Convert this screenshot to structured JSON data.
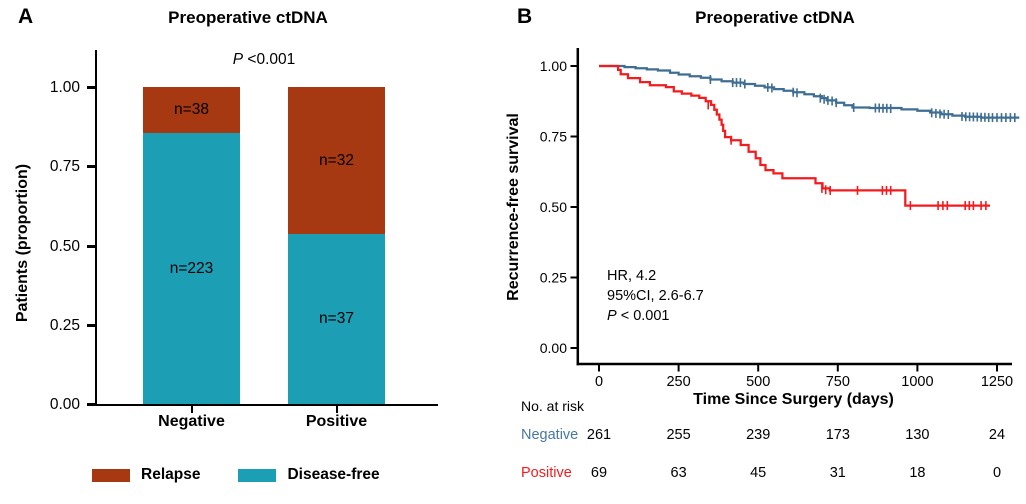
{
  "panel_a": {
    "label": "A",
    "title": "Preoperative ctDNA",
    "p_prefix": "P",
    "p_rest": " <0.001",
    "ylabel": "Patients (proportion)",
    "yticks": [
      "1.00",
      "0.75",
      "0.50",
      "0.25",
      "0.00"
    ],
    "xticklabels": [
      "Negative",
      "Positive"
    ],
    "segments": [
      {
        "relapse_label": "n=38",
        "disease_free_label": "n=223"
      },
      {
        "relapse_label": "n=32",
        "disease_free_label": "n=37"
      }
    ],
    "legend": [
      {
        "label": "Relapse",
        "color": "#A63911"
      },
      {
        "label": "Disease-free",
        "color": "#1C9EB5"
      }
    ]
  },
  "panel_b": {
    "label": "B",
    "title": "Preoperative ctDNA",
    "ylabel": "Recurrence-free survival",
    "xlabel": "Time Since Surgery (days)",
    "yticks": [
      "1.00",
      "0.75",
      "0.50",
      "0.25",
      "0.00"
    ],
    "xticks": [
      "0",
      "250",
      "500",
      "750",
      "1000",
      "1250"
    ],
    "annotation_line1": "HR, 4.2",
    "annotation_line2": "95%CI, 2.6-6.7",
    "p_prefix": "P",
    "p_rest": " < 0.001",
    "risk_header": "No. at risk",
    "risk_rows": [
      {
        "name": "Negative",
        "color": "#4678A5",
        "values": [
          "261",
          "255",
          "239",
          "173",
          "130",
          "24"
        ]
      },
      {
        "name": "Positive",
        "color": "#F31B1E",
        "values": [
          "69",
          "63",
          "45",
          "31",
          "18",
          "0"
        ]
      }
    ]
  },
  "chart_data": [
    {
      "type": "bar",
      "stacked": true,
      "panel": "A",
      "title": "Preoperative ctDNA",
      "annotation": "P <0.001",
      "categories": [
        "Negative",
        "Positive"
      ],
      "series": [
        {
          "name": "Relapse",
          "color": "#A63911",
          "counts": [
            38,
            32
          ],
          "values": [
            0.146,
            0.464
          ]
        },
        {
          "name": "Disease-free",
          "color": "#1C9EB5",
          "counts": [
            223,
            37
          ],
          "values": [
            0.854,
            0.536
          ]
        }
      ],
      "totals": [
        261,
        69
      ],
      "ylabel": "Patients (proportion)",
      "ylim": [
        0,
        1
      ],
      "yticks": [
        1.0,
        0.75,
        0.5,
        0.25,
        0.0
      ],
      "legend_position": "bottom"
    },
    {
      "type": "line",
      "subtype": "kaplan-meier",
      "panel": "B",
      "title": "Preoperative ctDNA",
      "xlabel": "Time Since Surgery (days)",
      "ylabel": "Recurrence-free survival",
      "xlim": [
        0,
        1250
      ],
      "ylim": [
        0,
        1
      ],
      "xticks": [
        0,
        250,
        500,
        750,
        1000,
        1250
      ],
      "yticks": [
        1.0,
        0.75,
        0.5,
        0.25,
        0.0
      ],
      "annotation": [
        "HR, 4.2",
        "95%CI, 2.6-6.7",
        "P < 0.001"
      ],
      "series": [
        {
          "name": "Negative",
          "color": "#3E6E93",
          "steps": [
            [
              0,
              1
            ],
            [
              80,
              1
            ],
            [
              80,
              0.996
            ],
            [
              115,
              0.992
            ],
            [
              150,
              0.988
            ],
            [
              185,
              0.984
            ],
            [
              223,
              0.976
            ],
            [
              250,
              0.97
            ],
            [
              285,
              0.964
            ],
            [
              320,
              0.958
            ],
            [
              350,
              0.952
            ],
            [
              385,
              0.946
            ],
            [
              420,
              0.941
            ],
            [
              455,
              0.936
            ],
            [
              490,
              0.93
            ],
            [
              520,
              0.924
            ],
            [
              550,
              0.918
            ],
            [
              580,
              0.912
            ],
            [
              610,
              0.907
            ],
            [
              645,
              0.9
            ],
            [
              675,
              0.893
            ],
            [
              700,
              0.886
            ],
            [
              715,
              0.878
            ],
            [
              745,
              0.87
            ],
            [
              770,
              0.861
            ],
            [
              796,
              0.853
            ],
            [
              850,
              0.851
            ],
            [
              950,
              0.846
            ],
            [
              1000,
              0.841
            ],
            [
              1040,
              0.835
            ],
            [
              1075,
              0.829
            ],
            [
              1110,
              0.824
            ],
            [
              1150,
              0.82
            ],
            [
              1200,
              0.817
            ],
            [
              1320,
              0.817
            ]
          ],
          "censors": [
            [
              350,
              0.952
            ],
            [
              420,
              0.941
            ],
            [
              432,
              0.941
            ],
            [
              444,
              0.941
            ],
            [
              458,
              0.936
            ],
            [
              530,
              0.924
            ],
            [
              543,
              0.922
            ],
            [
              610,
              0.907
            ],
            [
              622,
              0.905
            ],
            [
              695,
              0.886
            ],
            [
              707,
              0.882
            ],
            [
              719,
              0.878
            ],
            [
              732,
              0.876
            ],
            [
              745,
              0.87
            ],
            [
              800,
              0.853
            ],
            [
              868,
              0.851
            ],
            [
              880,
              0.851
            ],
            [
              892,
              0.85
            ],
            [
              904,
              0.85
            ],
            [
              916,
              0.849
            ],
            [
              1045,
              0.834
            ],
            [
              1058,
              0.832
            ],
            [
              1071,
              0.83
            ],
            [
              1084,
              0.829
            ],
            [
              1097,
              0.828
            ],
            [
              1140,
              0.821
            ],
            [
              1152,
              0.82
            ],
            [
              1164,
              0.82
            ],
            [
              1176,
              0.819
            ],
            [
              1188,
              0.819
            ],
            [
              1200,
              0.818
            ],
            [
              1212,
              0.818
            ],
            [
              1224,
              0.817
            ],
            [
              1236,
              0.817
            ],
            [
              1250,
              0.817
            ],
            [
              1264,
              0.817
            ],
            [
              1278,
              0.817
            ],
            [
              1292,
              0.817
            ],
            [
              1306,
              0.817
            ]
          ]
        },
        {
          "name": "Positive",
          "color": "#F31B1E",
          "steps": [
            [
              0,
              1
            ],
            [
              55,
              1
            ],
            [
              60,
              0.986
            ],
            [
              68,
              0.971
            ],
            [
              91,
              0.957
            ],
            [
              129,
              0.943
            ],
            [
              160,
              0.932
            ],
            [
              210,
              0.925
            ],
            [
              235,
              0.91
            ],
            [
              260,
              0.902
            ],
            [
              290,
              0.895
            ],
            [
              315,
              0.887
            ],
            [
              335,
              0.875
            ],
            [
              352,
              0.862
            ],
            [
              362,
              0.845
            ],
            [
              370,
              0.828
            ],
            [
              378,
              0.81
            ],
            [
              385,
              0.792
            ],
            [
              390,
              0.77
            ],
            [
              396,
              0.748
            ],
            [
              415,
              0.737
            ],
            [
              445,
              0.72
            ],
            [
              470,
              0.696
            ],
            [
              492,
              0.673
            ],
            [
              507,
              0.649
            ],
            [
              523,
              0.631
            ],
            [
              548,
              0.619
            ],
            [
              576,
              0.602
            ],
            [
              680,
              0.584
            ],
            [
              702,
              0.566
            ],
            [
              725,
              0.559
            ],
            [
              962,
              0.505
            ],
            [
              1228,
              0.505
            ]
          ],
          "censors": [
            [
              343,
              0.862
            ],
            [
              415,
              0.737
            ],
            [
              700,
              0.566
            ],
            [
              712,
              0.561
            ],
            [
              726,
              0.559
            ],
            [
              812,
              0.559
            ],
            [
              890,
              0.559
            ],
            [
              903,
              0.559
            ],
            [
              916,
              0.559
            ],
            [
              978,
              0.505
            ],
            [
              1065,
              0.505
            ],
            [
              1080,
              0.505
            ],
            [
              1094,
              0.505
            ],
            [
              1150,
              0.505
            ],
            [
              1163,
              0.505
            ],
            [
              1176,
              0.505
            ],
            [
              1200,
              0.505
            ],
            [
              1215,
              0.505
            ]
          ]
        }
      ],
      "risk_table": {
        "label": "No. at risk",
        "times": [
          0,
          250,
          500,
          750,
          1000,
          1250
        ],
        "rows": [
          {
            "name": "Negative",
            "values": [
              261,
              255,
              239,
              173,
              130,
              24
            ]
          },
          {
            "name": "Positive",
            "values": [
              69,
              63,
              45,
              31,
              18,
              0
            ]
          }
        ]
      }
    }
  ]
}
